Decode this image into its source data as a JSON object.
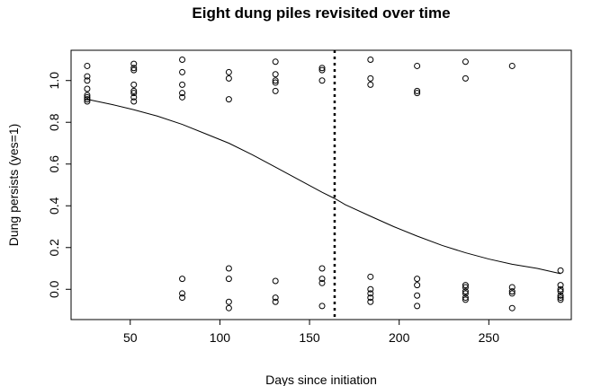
{
  "chart_data": {
    "type": "scatter",
    "title": "Eight dung piles revisited over time",
    "xlabel": "Days since initiation",
    "ylabel": "Dung persists (yes=1)",
    "xlim": [
      17,
      296
    ],
    "ylim": [
      -0.145,
      1.145
    ],
    "x_ticks": [
      50,
      100,
      150,
      200,
      250
    ],
    "y_ticks": [
      0.0,
      0.2,
      0.4,
      0.6,
      0.8,
      1.0
    ],
    "y_tick_labels": [
      "0.0",
      "0.2",
      "0.4",
      "0.6",
      "0.8",
      "1.0"
    ],
    "grid": false,
    "legend": "none",
    "vline": {
      "x": 164,
      "style": "dotted"
    },
    "points": [
      [
        26,
        1.07
      ],
      [
        26,
        1.02
      ],
      [
        26,
        1.0
      ],
      [
        26,
        0.96
      ],
      [
        26,
        0.93
      ],
      [
        26,
        0.92
      ],
      [
        26,
        0.91
      ],
      [
        26,
        0.9
      ],
      [
        52,
        1.08
      ],
      [
        52,
        1.06
      ],
      [
        52,
        1.05
      ],
      [
        52,
        0.98
      ],
      [
        52,
        0.95
      ],
      [
        52,
        0.94
      ],
      [
        52,
        0.92
      ],
      [
        52,
        0.9
      ],
      [
        79,
        1.1
      ],
      [
        79,
        1.04
      ],
      [
        79,
        0.98
      ],
      [
        79,
        0.94
      ],
      [
        79,
        0.92
      ],
      [
        79,
        0.05
      ],
      [
        79,
        -0.02
      ],
      [
        79,
        -0.04
      ],
      [
        105,
        1.04
      ],
      [
        105,
        1.01
      ],
      [
        105,
        0.91
      ],
      [
        105,
        0.1
      ],
      [
        105,
        0.05
      ],
      [
        105,
        -0.06
      ],
      [
        105,
        -0.09
      ],
      [
        131,
        1.09
      ],
      [
        131,
        1.03
      ],
      [
        131,
        1.0
      ],
      [
        131,
        0.99
      ],
      [
        131,
        0.95
      ],
      [
        131,
        0.04
      ],
      [
        131,
        -0.04
      ],
      [
        131,
        -0.06
      ],
      [
        157,
        1.06
      ],
      [
        157,
        1.05
      ],
      [
        157,
        1.0
      ],
      [
        157,
        0.1
      ],
      [
        157,
        0.05
      ],
      [
        157,
        0.03
      ],
      [
        157,
        -0.08
      ],
      [
        184,
        1.1
      ],
      [
        184,
        1.01
      ],
      [
        184,
        0.98
      ],
      [
        184,
        0.06
      ],
      [
        184,
        0.0
      ],
      [
        184,
        -0.02
      ],
      [
        184,
        -0.04
      ],
      [
        184,
        -0.06
      ],
      [
        210,
        1.07
      ],
      [
        210,
        0.95
      ],
      [
        210,
        0.94
      ],
      [
        210,
        0.05
      ],
      [
        210,
        0.02
      ],
      [
        210,
        -0.03
      ],
      [
        210,
        -0.08
      ],
      [
        237,
        1.09
      ],
      [
        237,
        1.01
      ],
      [
        237,
        0.02
      ],
      [
        237,
        0.01
      ],
      [
        237,
        -0.01
      ],
      [
        237,
        -0.02
      ],
      [
        237,
        -0.04
      ],
      [
        237,
        -0.05
      ],
      [
        263,
        1.07
      ],
      [
        263,
        0.01
      ],
      [
        263,
        -0.01
      ],
      [
        263,
        -0.02
      ],
      [
        263,
        -0.09
      ],
      [
        290,
        0.09
      ],
      [
        290,
        0.02
      ],
      [
        290,
        0.0
      ],
      [
        290,
        -0.01
      ],
      [
        290,
        -0.03
      ],
      [
        290,
        -0.04
      ],
      [
        290,
        -0.05
      ]
    ],
    "fit_curve": {
      "type": "logistic",
      "x": [
        26,
        40,
        52,
        65,
        79,
        92,
        105,
        118,
        131,
        144,
        157,
        164,
        170,
        184,
        197,
        210,
        224,
        237,
        250,
        263,
        277,
        290
      ],
      "y": [
        0.91,
        0.885,
        0.86,
        0.83,
        0.79,
        0.745,
        0.7,
        0.645,
        0.585,
        0.525,
        0.465,
        0.435,
        0.405,
        0.35,
        0.3,
        0.255,
        0.21,
        0.175,
        0.145,
        0.12,
        0.1,
        0.075
      ]
    }
  }
}
